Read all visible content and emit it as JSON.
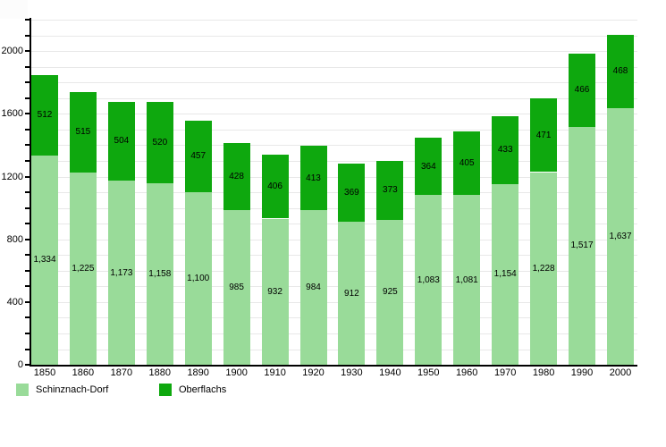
{
  "chart_data": {
    "type": "bar",
    "stacked": true,
    "title": "",
    "xlabel": "",
    "ylabel": "",
    "categories": [
      "1850",
      "1860",
      "1870",
      "1880",
      "1890",
      "1900",
      "1910",
      "1920",
      "1930",
      "1940",
      "1950",
      "1960",
      "1970",
      "1980",
      "1990",
      "2000"
    ],
    "series": [
      {
        "name": "Schinznach-Dorf",
        "color": "#99DB99",
        "values": [
          1334,
          1225,
          1173,
          1158,
          1100,
          985,
          932,
          984,
          912,
          925,
          1083,
          1081,
          1154,
          1228,
          1517,
          1637
        ],
        "value_labels": [
          "1,334",
          "1,225",
          "1,173",
          "1,158",
          "1,100",
          "985",
          "932",
          "984",
          "912",
          "925",
          "1,083",
          "1,081",
          "1,154",
          "1,228",
          "1,517",
          "1,637"
        ]
      },
      {
        "name": "Oberflachs",
        "color": "#0EA80E",
        "values": [
          512,
          515,
          504,
          520,
          457,
          428,
          406,
          413,
          369,
          373,
          364,
          405,
          433,
          471,
          466,
          468
        ],
        "value_labels": [
          "512",
          "515",
          "504",
          "520",
          "457",
          "428",
          "406",
          "413",
          "369",
          "373",
          "364",
          "405",
          "433",
          "471",
          "466",
          "468"
        ]
      }
    ],
    "ylim": [
      0,
      2200
    ],
    "y_tick_interval": 100,
    "y_label_interval": 400,
    "y_tick_labels": [
      "0",
      "400",
      "800",
      "1200",
      "1600",
      "2000"
    ],
    "grid": true,
    "gridline_color": "#E8E8E8",
    "axis_color": "#000000",
    "value_label_color": "#000000",
    "legend_position": "bottom-left"
  }
}
